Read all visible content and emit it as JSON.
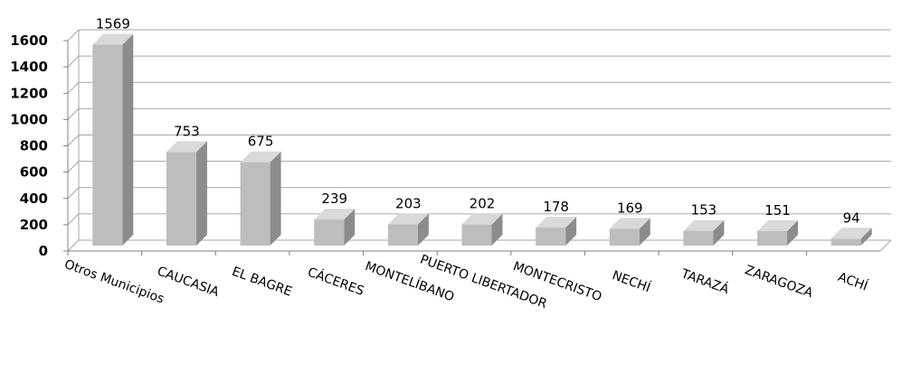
{
  "chart_data": {
    "type": "bar",
    "title": "",
    "xlabel": "",
    "ylabel": "",
    "categories": [
      "Otros Municipios",
      "CAUCASIA",
      "EL BAGRE",
      "CÁCERES",
      "MONTELÍBANO",
      "PUERTO LIBERTADOR",
      "MONTECRISTO",
      "NECHÍ",
      "TARAZÁ",
      "ZARAGOZA",
      "ACHÍ"
    ],
    "values": [
      1569,
      753,
      675,
      239,
      203,
      202,
      178,
      169,
      153,
      151,
      94
    ],
    "data_labels": [
      "1569",
      "753",
      "675",
      "239",
      "203",
      "202",
      "178",
      "169",
      "153",
      "151",
      "94"
    ],
    "ylim": [
      0,
      1600
    ],
    "yticks": [
      0,
      200,
      400,
      600,
      800,
      1000,
      1200,
      1400,
      1600
    ],
    "ytick_labels": [
      "0",
      "200",
      "400",
      "600",
      "800",
      "1000",
      "1200",
      "1400",
      "1600"
    ],
    "grid": true,
    "legend": "none",
    "style": "3d-column",
    "colors": {
      "bar_front": "#bdbdbd",
      "bar_top": "#d9d9d9",
      "bar_side": "#8c8c8c",
      "grid": "#a6a6a6",
      "axis": "#808080"
    }
  }
}
